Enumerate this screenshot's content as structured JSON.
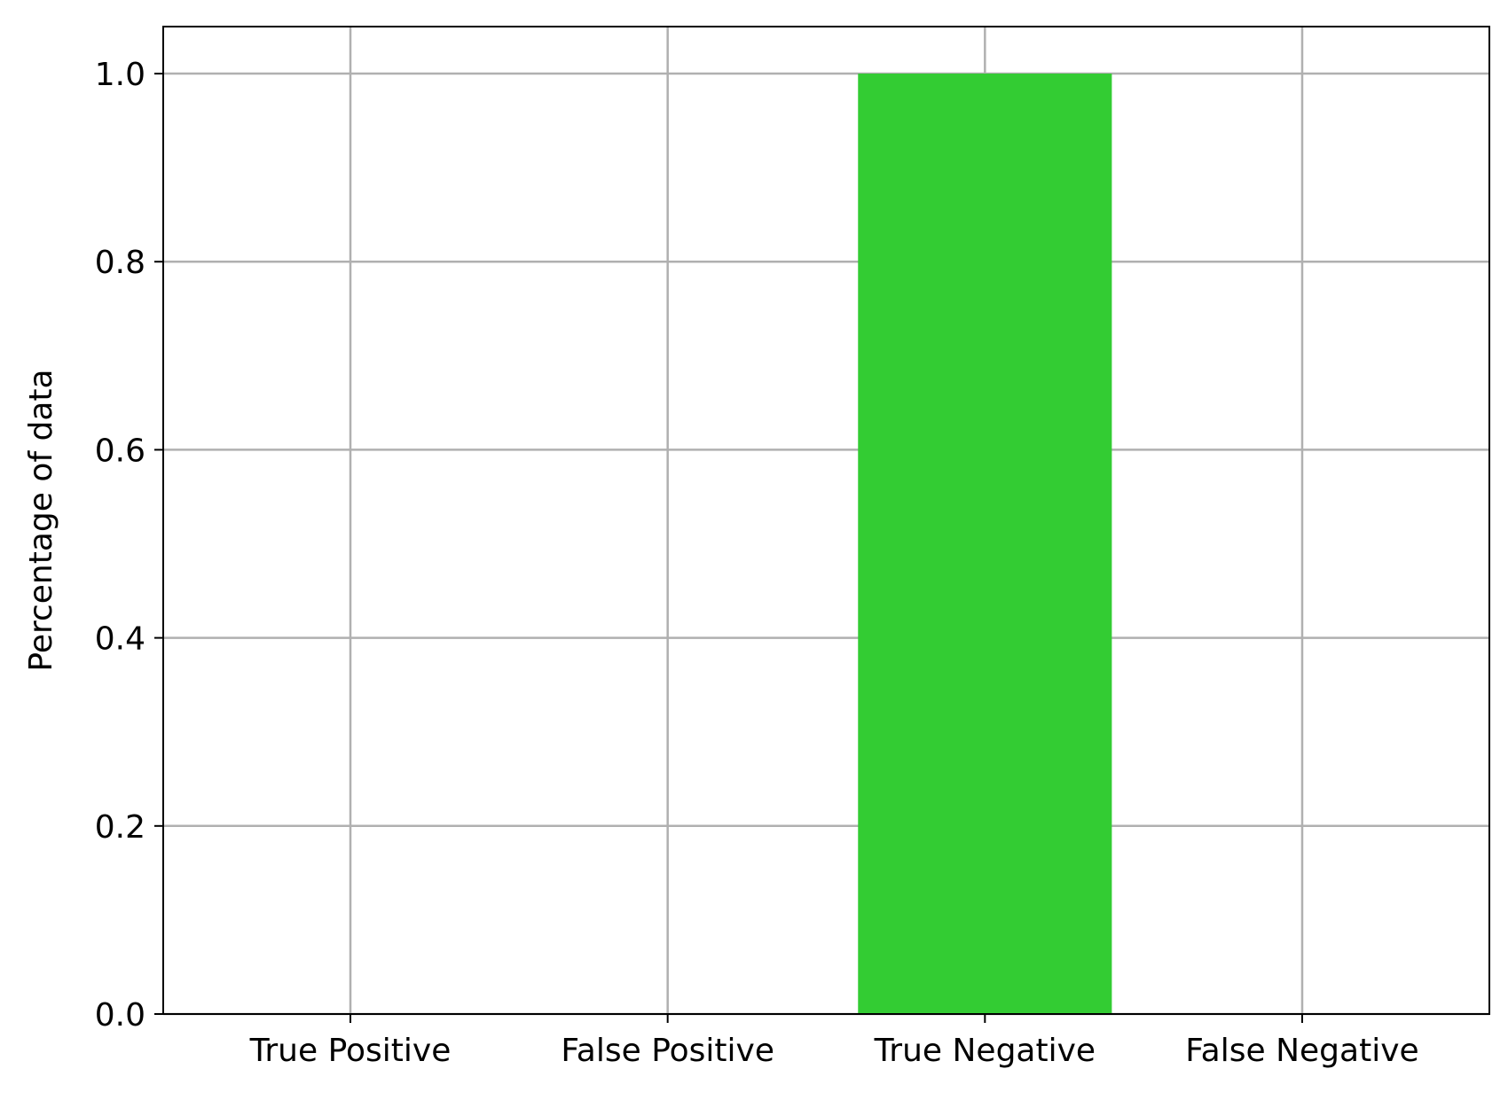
{
  "chart_data": {
    "type": "bar",
    "categories": [
      "True Positive",
      "False Positive",
      "True Negative",
      "False Negative"
    ],
    "values": [
      0.0,
      0.0,
      1.0,
      0.0
    ],
    "bar_colors": [
      "#33cc33",
      "#33cc33",
      "#33cc33",
      "#33cc33"
    ],
    "title": "",
    "xlabel": "",
    "ylabel": "Percentage of data",
    "ylim": [
      0,
      1.05
    ],
    "yticks": [
      0.0,
      0.2,
      0.4,
      0.6,
      0.8,
      1.0
    ],
    "ytick_labels": [
      "0.0",
      "0.2",
      "0.4",
      "0.6",
      "0.8",
      "1.0"
    ],
    "grid": true,
    "grid_color": "#b0b0b0",
    "axes_color": "#000000",
    "background": "#ffffff"
  }
}
